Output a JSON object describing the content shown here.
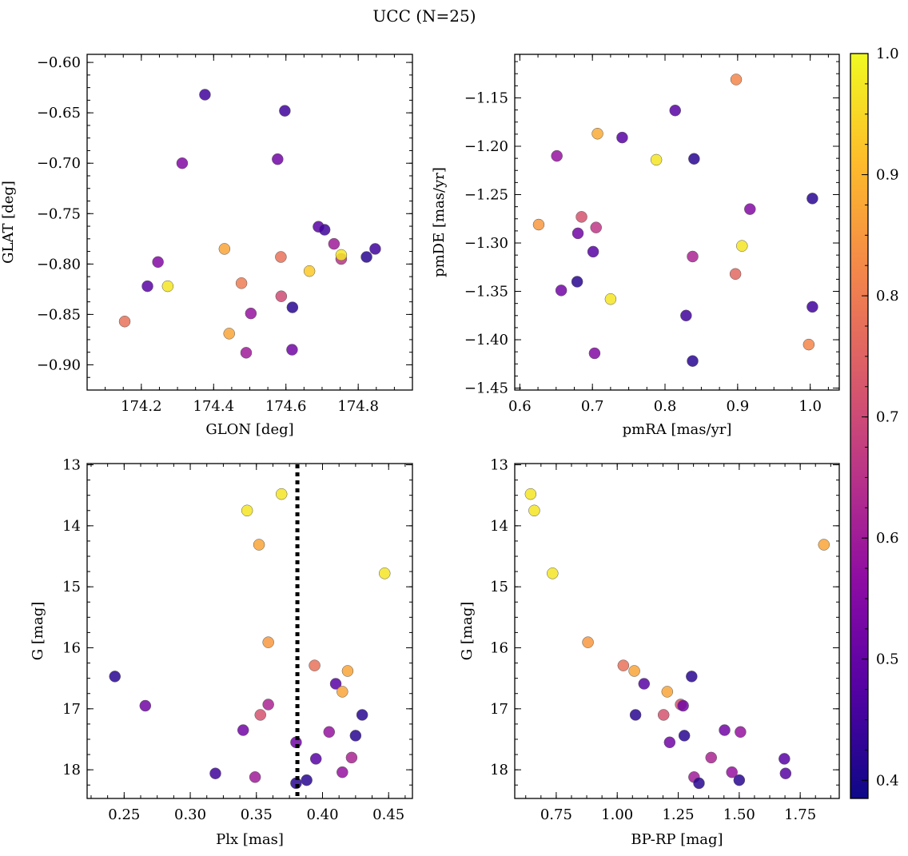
{
  "figure": {
    "title": "UCC (N=25)"
  },
  "colorbar": {
    "vmin": 0.385,
    "vmax": 1.0,
    "ticks": [
      0.4,
      0.5,
      0.6,
      0.7,
      0.8,
      0.9
    ],
    "tick_labels": [
      "0.4",
      "0.5",
      "0.6",
      "0.7",
      "0.8",
      "0.9",
      "1.0"
    ],
    "extra_tick": 1.0,
    "colormap": "plasma",
    "colors": [
      "#0d0887",
      "#5302a3",
      "#8b0aa5",
      "#b83289",
      "#db5c68",
      "#f48849",
      "#febd2a",
      "#f0f921"
    ]
  },
  "chart_data": [
    {
      "type": "scatter",
      "title": "",
      "xlabel": "GLON [deg]",
      "ylabel": "GLAT [deg]",
      "xlim": [
        174.05,
        174.95
      ],
      "ylim": [
        -0.925,
        -0.592
      ],
      "xticks": [
        174.2,
        174.4,
        174.6,
        174.8
      ],
      "xtick_labels": [
        "174.2",
        "174.4",
        "174.6",
        "174.8"
      ],
      "yticks": [
        -0.6,
        -0.65,
        -0.7,
        -0.75,
        -0.8,
        -0.85,
        -0.9
      ],
      "ytick_labels": [
        "−0.60",
        "−0.65",
        "−0.70",
        "−0.75",
        "−0.80",
        "−0.85",
        "−0.90"
      ],
      "x": [
        174.376,
        174.597,
        174.313,
        174.577,
        174.69,
        174.707,
        174.733,
        174.753,
        174.823,
        174.847,
        174.246,
        174.217,
        174.273,
        174.43,
        174.586,
        174.665,
        174.753,
        174.477,
        174.587,
        174.618,
        174.503,
        174.443,
        174.154,
        174.49,
        174.617
      ],
      "y": [
        -0.632,
        -0.648,
        -0.7,
        -0.696,
        -0.763,
        -0.766,
        -0.78,
        -0.795,
        -0.793,
        -0.785,
        -0.798,
        -0.822,
        -0.822,
        -0.785,
        -0.793,
        -0.807,
        -0.791,
        -0.819,
        -0.832,
        -0.843,
        -0.849,
        -0.869,
        -0.857,
        -0.888,
        -0.885
      ],
      "c": [
        0.45,
        0.45,
        0.55,
        0.52,
        0.48,
        0.45,
        0.6,
        0.65,
        0.42,
        0.45,
        0.55,
        0.48,
        0.97,
        0.87,
        0.78,
        0.93,
        0.97,
        0.8,
        0.7,
        0.42,
        0.58,
        0.87,
        0.78,
        0.6,
        0.52
      ]
    },
    {
      "type": "scatter",
      "title": "",
      "xlabel": "pmRA [mas/yr]",
      "ylabel": "pmDE [mas/yr]",
      "xlim": [
        0.593,
        1.04
      ],
      "ylim": [
        -1.452,
        -1.105
      ],
      "xticks": [
        0.6,
        0.7,
        0.8,
        0.9,
        1.0
      ],
      "xtick_labels": [
        "0.6",
        "0.7",
        "0.8",
        "0.9",
        "1.0"
      ],
      "yticks": [
        -1.15,
        -1.2,
        -1.25,
        -1.3,
        -1.35,
        -1.4,
        -1.45
      ],
      "ytick_labels": [
        "−1.15",
        "−1.20",
        "−1.25",
        "−1.30",
        "−1.35",
        "−1.40",
        "−1.45"
      ],
      "x": [
        0.898,
        0.814,
        0.707,
        0.741,
        0.788,
        0.84,
        0.651,
        1.003,
        0.917,
        0.626,
        0.685,
        0.705,
        0.68,
        0.906,
        0.701,
        0.838,
        0.897,
        0.679,
        0.657,
        0.725,
        1.003,
        0.829,
        0.998,
        0.838,
        0.703
      ],
      "y": [
        -1.131,
        -1.163,
        -1.187,
        -1.191,
        -1.214,
        -1.213,
        -1.21,
        -1.254,
        -1.265,
        -1.281,
        -1.273,
        -1.284,
        -1.29,
        -1.303,
        -1.309,
        -1.314,
        -1.332,
        -1.34,
        -1.349,
        -1.358,
        -1.366,
        -1.375,
        -1.405,
        -1.422,
        -1.414
      ],
      "c": [
        0.82,
        0.48,
        0.88,
        0.48,
        0.97,
        0.42,
        0.58,
        0.42,
        0.55,
        0.85,
        0.72,
        0.66,
        0.52,
        0.97,
        0.48,
        0.62,
        0.76,
        0.42,
        0.52,
        0.97,
        0.45,
        0.45,
        0.82,
        0.42,
        0.55
      ]
    },
    {
      "type": "scatter",
      "title": "",
      "xlabel": "Plx [mas]",
      "ylabel": "G [mag]",
      "xlim": [
        0.222,
        0.468
      ],
      "ylim": [
        18.47,
        12.98
      ],
      "y_inverted": true,
      "vline": {
        "x": 0.381,
        "style": "dotted",
        "color": "#000000"
      },
      "xticks": [
        0.25,
        0.3,
        0.35,
        0.4,
        0.45
      ],
      "xtick_labels": [
        "0.25",
        "0.30",
        "0.35",
        "0.40",
        "0.45"
      ],
      "yticks": [
        13,
        14,
        15,
        16,
        17,
        18
      ],
      "ytick_labels": [
        "13",
        "14",
        "15",
        "16",
        "17",
        "18"
      ],
      "x": [
        0.369,
        0.343,
        0.352,
        0.447,
        0.359,
        0.394,
        0.419,
        0.243,
        0.41,
        0.415,
        0.266,
        0.359,
        0.353,
        0.43,
        0.34,
        0.405,
        0.425,
        0.38,
        0.422,
        0.395,
        0.415,
        0.319,
        0.349,
        0.388,
        0.38
      ],
      "y": [
        13.48,
        13.75,
        14.31,
        14.78,
        15.91,
        16.29,
        16.38,
        16.47,
        16.59,
        16.72,
        16.95,
        16.93,
        17.1,
        17.1,
        17.35,
        17.38,
        17.44,
        17.55,
        17.8,
        17.82,
        18.04,
        18.06,
        18.12,
        18.17,
        18.22
      ],
      "c": [
        0.97,
        0.97,
        0.87,
        0.97,
        0.85,
        0.78,
        0.87,
        0.42,
        0.48,
        0.87,
        0.52,
        0.62,
        0.72,
        0.42,
        0.52,
        0.58,
        0.42,
        0.52,
        0.62,
        0.48,
        0.58,
        0.45,
        0.6,
        0.42,
        0.42
      ]
    },
    {
      "type": "scatter",
      "title": "",
      "xlabel": "BP-RP [mag]",
      "ylabel": "G [mag]",
      "xlim": [
        0.58,
        1.91
      ],
      "ylim": [
        18.47,
        12.98
      ],
      "y_inverted": true,
      "xticks": [
        0.75,
        1.0,
        1.25,
        1.5,
        1.75
      ],
      "xtick_labels": [
        "0.75",
        "1.00",
        "1.25",
        "1.50",
        "1.75"
      ],
      "yticks": [
        13,
        14,
        15,
        16,
        17,
        18
      ],
      "ytick_labels": [
        "13",
        "14",
        "15",
        "16",
        "17",
        "18"
      ],
      "x": [
        0.645,
        0.66,
        0.735,
        0.88,
        1.847,
        1.025,
        1.07,
        1.305,
        1.11,
        1.205,
        1.26,
        1.27,
        1.19,
        1.075,
        1.275,
        1.44,
        1.505,
        1.215,
        1.385,
        1.685,
        1.47,
        1.69,
        1.315,
        1.5,
        1.335
      ],
      "y": [
        13.48,
        13.75,
        14.78,
        15.91,
        14.31,
        16.29,
        16.38,
        16.47,
        16.59,
        16.72,
        16.93,
        16.95,
        17.1,
        17.1,
        17.44,
        17.35,
        17.38,
        17.55,
        17.8,
        17.82,
        18.04,
        18.06,
        18.12,
        18.17,
        18.22
      ],
      "c": [
        0.97,
        0.97,
        0.97,
        0.85,
        0.87,
        0.78,
        0.87,
        0.42,
        0.48,
        0.87,
        0.72,
        0.52,
        0.72,
        0.42,
        0.42,
        0.52,
        0.58,
        0.52,
        0.62,
        0.48,
        0.58,
        0.48,
        0.6,
        0.42,
        0.42
      ]
    }
  ]
}
